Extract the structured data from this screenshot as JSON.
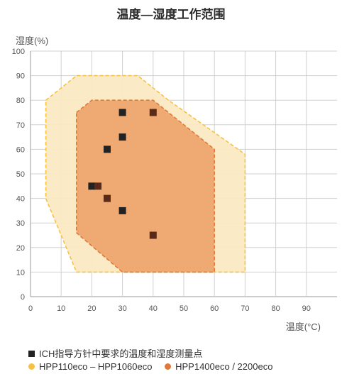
{
  "chart_data": {
    "type": "scatter",
    "title": "温度—湿度工作范围",
    "xlabel": "温度(°C)",
    "ylabel": "湿度(%)",
    "xlim": [
      0,
      100
    ],
    "ylim": [
      0,
      100
    ],
    "xticks": [
      0,
      10,
      20,
      30,
      40,
      50,
      60,
      70,
      80,
      90
    ],
    "yticks": [
      0,
      10,
      20,
      30,
      40,
      50,
      60,
      70,
      80,
      90,
      100
    ],
    "grid": true,
    "legend_position": "bottom",
    "regions": [
      {
        "name": "HPP110eco – HPP1060eco",
        "color": "#f5c242",
        "fill": "#fbe9c3",
        "polygon": [
          [
            5,
            80
          ],
          [
            15,
            90
          ],
          [
            35,
            90
          ],
          [
            45,
            80
          ],
          [
            70,
            58
          ],
          [
            70,
            10
          ],
          [
            15,
            10
          ],
          [
            5,
            40
          ]
        ]
      },
      {
        "name": "HPP1400eco / 2200eco",
        "color": "#e07a3a",
        "fill": "#eda66e",
        "polygon": [
          [
            15,
            75
          ],
          [
            20,
            80
          ],
          [
            40,
            80
          ],
          [
            50,
            70
          ],
          [
            60,
            60
          ],
          [
            60,
            10
          ],
          [
            30,
            10
          ],
          [
            15,
            26
          ]
        ]
      }
    ],
    "points_series": {
      "name": "ICH指导方针中要求的温度和湿度测量点",
      "color": "#222222",
      "points": [
        {
          "x": 30,
          "y": 75
        },
        {
          "x": 40,
          "y": 75
        },
        {
          "x": 30,
          "y": 65
        },
        {
          "x": 25,
          "y": 60
        },
        {
          "x": 20,
          "y": 45
        },
        {
          "x": 22,
          "y": 45
        },
        {
          "x": 25,
          "y": 40
        },
        {
          "x": 30,
          "y": 35
        },
        {
          "x": 40,
          "y": 25
        }
      ]
    }
  },
  "legend": {
    "square_label": "ICH指导方针中要求的温度和湿度测量点",
    "dot1_label": "HPP110eco – HPP1060eco",
    "dot1_color": "#f5c242",
    "dot2_label": "HPP1400eco / 2200eco",
    "dot2_color": "#e07a3a"
  }
}
